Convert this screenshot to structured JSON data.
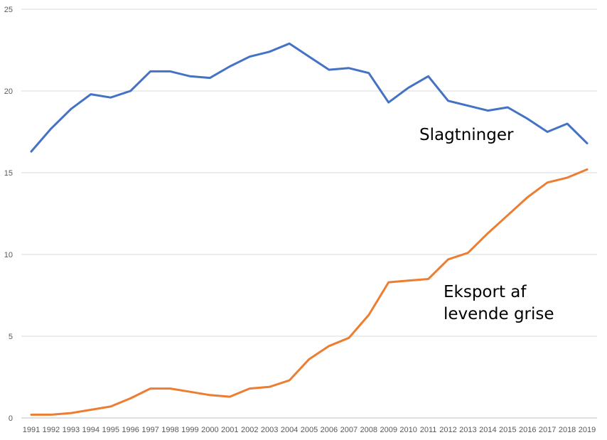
{
  "chart_data": {
    "type": "line",
    "title": "",
    "xlabel": "",
    "ylabel": "",
    "ylim": [
      0,
      25
    ],
    "yticks": [
      0,
      5,
      10,
      15,
      20,
      25
    ],
    "grid": true,
    "legend": "none",
    "x": [
      "1991",
      "1992",
      "1993",
      "1994",
      "1995",
      "1996",
      "1997",
      "1998",
      "1999",
      "2000",
      "2001",
      "2002",
      "2003",
      "2004",
      "2005",
      "2006",
      "2007",
      "2008",
      "2009",
      "2010",
      "2011",
      "2012",
      "2013",
      "2014",
      "2015",
      "2016",
      "2017",
      "2018",
      "2019"
    ],
    "series": [
      {
        "id": "slagtninger",
        "color": "#4472c4",
        "values": [
          16.3,
          17.7,
          18.9,
          19.8,
          19.6,
          20.0,
          21.2,
          21.2,
          20.9,
          20.8,
          21.5,
          22.1,
          22.4,
          22.9,
          22.1,
          21.3,
          21.4,
          21.1,
          19.3,
          20.2,
          20.9,
          19.4,
          19.1,
          18.8,
          19.0,
          18.3,
          17.5,
          18.0,
          16.8
        ]
      },
      {
        "id": "eksport",
        "color": "#ed7d31",
        "values": [
          0.2,
          0.2,
          0.3,
          0.5,
          0.7,
          1.2,
          1.8,
          1.8,
          1.6,
          1.4,
          1.3,
          1.8,
          1.9,
          2.3,
          3.6,
          4.4,
          4.9,
          6.3,
          8.3,
          8.4,
          8.5,
          9.7,
          10.1,
          11.3,
          12.4,
          13.5,
          14.4,
          14.7,
          15.2
        ]
      }
    ],
    "annotations": {
      "slagtninger": "Slagtninger",
      "eksport_line1": "Eksport af",
      "eksport_line2": "levende grise"
    }
  }
}
